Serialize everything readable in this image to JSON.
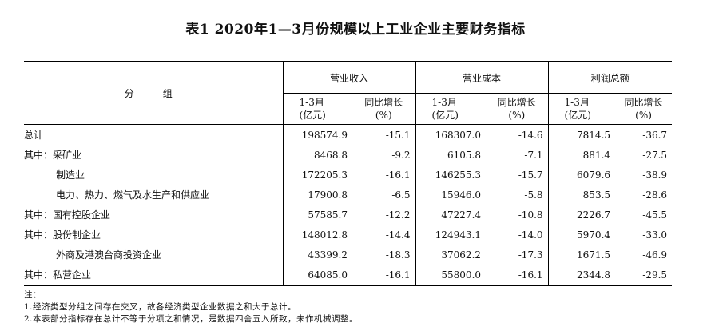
{
  "title": "表1  2020年1—3月份规模以上工业企业主要财务指标",
  "headers": {
    "group": "分　组",
    "revenue": "营业收入",
    "cost": "营业成本",
    "profit": "利润总额",
    "sub_amount_line1": "1-3月",
    "sub_amount_line2": "(亿元)",
    "sub_growth_line1": "同比增长",
    "sub_growth_line2": "(%)"
  },
  "rows": [
    {
      "label": "总计",
      "rev": "198574.9",
      "rev_g": "-15.1",
      "cost": "168307.0",
      "cost_g": "-14.6",
      "profit": "7814.5",
      "profit_g": "-36.7"
    },
    {
      "label": "其中：采矿业",
      "rev": "8468.8",
      "rev_g": "-9.2",
      "cost": "6105.8",
      "cost_g": "-7.1",
      "profit": "881.4",
      "profit_g": "-27.5"
    },
    {
      "label": "制造业",
      "rev": "172205.3",
      "rev_g": "-16.1",
      "cost": "146255.3",
      "cost_g": "-15.7",
      "profit": "6079.6",
      "profit_g": "-38.9"
    },
    {
      "label": "电力、热力、燃气及水生产和供应业",
      "rev": "17900.8",
      "rev_g": "-6.5",
      "cost": "15946.0",
      "cost_g": "-5.8",
      "profit": "853.5",
      "profit_g": "-28.6"
    },
    {
      "label": "其中：国有控股企业",
      "rev": "57585.7",
      "rev_g": "-12.2",
      "cost": "47227.4",
      "cost_g": "-10.8",
      "profit": "2226.7",
      "profit_g": "-45.5"
    },
    {
      "label": "其中：股份制企业",
      "rev": "148012.8",
      "rev_g": "-14.4",
      "cost": "124943.1",
      "cost_g": "-14.0",
      "profit": "5970.4",
      "profit_g": "-33.0"
    },
    {
      "label": "外商及港澳台商投资企业",
      "rev": "43399.2",
      "rev_g": "-18.3",
      "cost": "37062.2",
      "cost_g": "-17.3",
      "profit": "1671.5",
      "profit_g": "-46.9"
    },
    {
      "label": "其中：私营企业",
      "rev": "64085.0",
      "rev_g": "-16.1",
      "cost": "55800.0",
      "cost_g": "-16.1",
      "profit": "2344.8",
      "profit_g": "-29.5"
    }
  ],
  "notes": {
    "heading": "注：",
    "n1": "1.经济类型分组之间存在交叉，故各经济类型企业数据之和大于总计。",
    "n2": "2.本表部分指标存在总计不等于分项之和情况，是数据四舍五入所致，未作机械调整。"
  }
}
